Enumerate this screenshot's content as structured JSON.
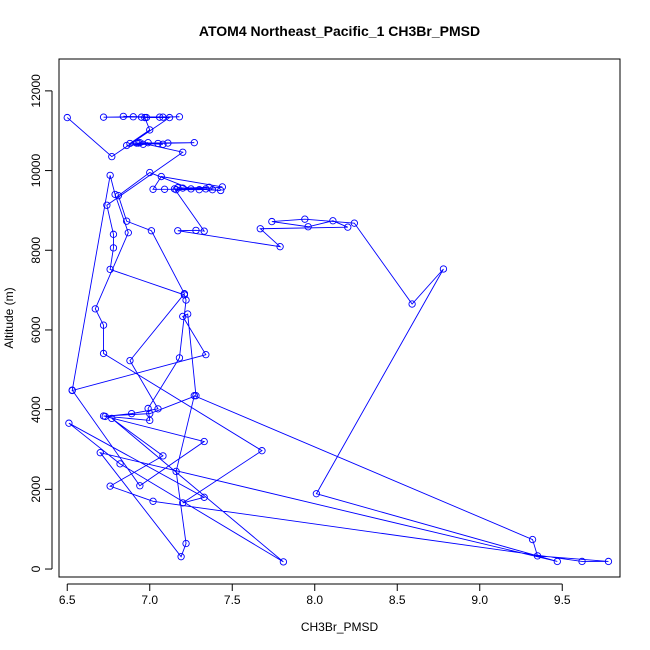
{
  "chart_data": {
    "type": "line",
    "title": "ATOM4 Northeast_Pacific_1 CH3Br_PMSD",
    "xlabel": "CH3Br_PMSD",
    "ylabel": "Altitude (m)",
    "xlim": [
      6.45,
      9.85
    ],
    "ylim": [
      -200,
      12800
    ],
    "x_ticks": [
      6.5,
      7.0,
      7.5,
      8.0,
      8.5,
      9.0,
      9.5
    ],
    "x_tick_labels": [
      "6.5",
      "7.0",
      "7.5",
      "8.0",
      "8.5",
      "9.0",
      "9.5"
    ],
    "y_ticks": [
      0,
      2000,
      4000,
      6000,
      8000,
      10000,
      12000
    ],
    "y_tick_labels": [
      "0",
      "2000",
      "4000",
      "6000",
      "8000",
      "10000",
      "12000"
    ],
    "grid": false,
    "marker": "open-circle",
    "color": "#0000ff",
    "series": [
      {
        "points": [
          [
            6.5,
            11330
          ],
          [
            6.77,
            10350
          ],
          [
            7.12,
            11330
          ],
          [
            6.9,
            11350
          ],
          [
            6.72,
            11340
          ],
          [
            7.18,
            11350
          ],
          [
            6.98,
            11330
          ],
          [
            6.84,
            11360
          ],
          [
            7.06,
            11340
          ],
          [
            6.95,
            11340
          ],
          [
            7.08,
            11340
          ],
          [
            6.97,
            11330
          ],
          [
            7.0,
            11020
          ],
          [
            6.88,
            10680
          ],
          [
            6.93,
            10690
          ],
          [
            7.27,
            10700
          ],
          [
            7.05,
            10680
          ],
          [
            6.96,
            10660
          ],
          [
            7.11,
            10690
          ],
          [
            6.86,
            10630
          ],
          [
            6.99,
            10700
          ],
          [
            6.92,
            10690
          ],
          [
            7.08,
            10660
          ],
          [
            6.94,
            10700
          ],
          [
            7.2,
            10460
          ],
          [
            6.74,
            9130
          ],
          [
            6.78,
            8400
          ],
          [
            6.78,
            8060
          ],
          [
            6.76,
            7520
          ],
          [
            7.21,
            6880
          ],
          [
            7.22,
            6750
          ],
          [
            7.18,
            5300
          ],
          [
            6.99,
            4030
          ],
          [
            7.0,
            3730
          ],
          [
            6.72,
            3840
          ],
          [
            7.0,
            3900
          ],
          [
            7.28,
            4350
          ],
          [
            7.23,
            6400
          ],
          [
            7.2,
            6340
          ],
          [
            7.34,
            5380
          ],
          [
            6.53,
            4480
          ],
          [
            6.76,
            9880
          ],
          [
            6.79,
            9400
          ],
          [
            6.87,
            8440
          ],
          [
            6.67,
            6530
          ],
          [
            6.72,
            6120
          ],
          [
            6.72,
            5410
          ],
          [
            7.68,
            2970
          ],
          [
            7.2,
            1660
          ],
          [
            7.33,
            1800
          ],
          [
            6.51,
            3660
          ],
          [
            6.82,
            2640
          ],
          [
            7.81,
            180
          ],
          [
            6.77,
            3780
          ],
          [
            7.08,
            2840
          ],
          [
            6.76,
            2080
          ],
          [
            7.02,
            1700
          ],
          [
            9.62,
            190
          ],
          [
            9.78,
            190
          ],
          [
            9.35,
            330
          ],
          [
            9.32,
            740
          ],
          [
            7.27,
            4350
          ],
          [
            7.16,
            2450
          ],
          [
            7.22,
            640
          ],
          [
            7.19,
            310
          ],
          [
            6.7,
            2920
          ],
          [
            9.47,
            190
          ],
          [
            8.01,
            1890
          ],
          [
            8.78,
            7530
          ],
          [
            8.59,
            6650
          ],
          [
            8.24,
            8680
          ],
          [
            7.94,
            8780
          ],
          [
            7.74,
            8720
          ],
          [
            7.96,
            8590
          ],
          [
            8.11,
            8740
          ],
          [
            8.2,
            8580
          ],
          [
            7.67,
            8540
          ],
          [
            7.79,
            8090
          ],
          [
            7.17,
            8490
          ],
          [
            7.28,
            8500
          ],
          [
            7.33,
            8480
          ],
          [
            7.15,
            9540
          ],
          [
            7.38,
            9520
          ],
          [
            7.43,
            9500
          ],
          [
            7.17,
            9570
          ],
          [
            7.34,
            9540
          ],
          [
            7.09,
            9530
          ],
          [
            7.02,
            9530
          ],
          [
            7.07,
            9850
          ],
          [
            7.44,
            9590
          ],
          [
            7.3,
            9520
          ],
          [
            7.16,
            9520
          ],
          [
            7.2,
            9560
          ],
          [
            7.36,
            9580
          ],
          [
            7.25,
            9540
          ],
          [
            7.0,
            9950
          ],
          [
            6.81,
            9370
          ],
          [
            6.86,
            8730
          ],
          [
            7.01,
            8490
          ],
          [
            7.21,
            6910
          ],
          [
            6.88,
            5230
          ],
          [
            7.05,
            4020
          ],
          [
            6.89,
            3900
          ],
          [
            6.73,
            3830
          ],
          [
            7.33,
            3200
          ],
          [
            6.94,
            2090
          ],
          [
            6.53,
            4490
          ]
        ]
      }
    ]
  }
}
